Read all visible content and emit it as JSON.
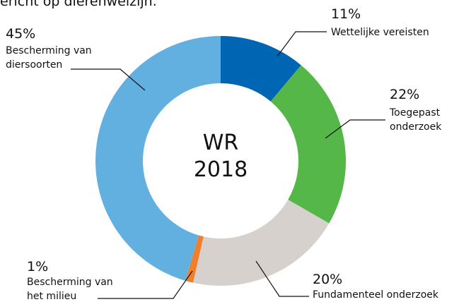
{
  "chart_data": {
    "type": "donut",
    "title": "ericht op dierenwelzijn.",
    "center_label": [
      "WR",
      "2018"
    ],
    "categories": [
      "Wettelijke vereisten",
      "Toegepast onderzoek",
      "Fundamenteel onderzoek",
      "Bescherming van het milieu",
      "Bescherming van diersoorten"
    ],
    "values": [
      11,
      22,
      20,
      1,
      45
    ],
    "value_labels": [
      "11%",
      "22%",
      "20%",
      "1%",
      "45%"
    ],
    "colors": [
      "#0066b3",
      "#55b748",
      "#d6d1cc",
      "#f07f2c",
      "#62b0e0"
    ]
  }
}
